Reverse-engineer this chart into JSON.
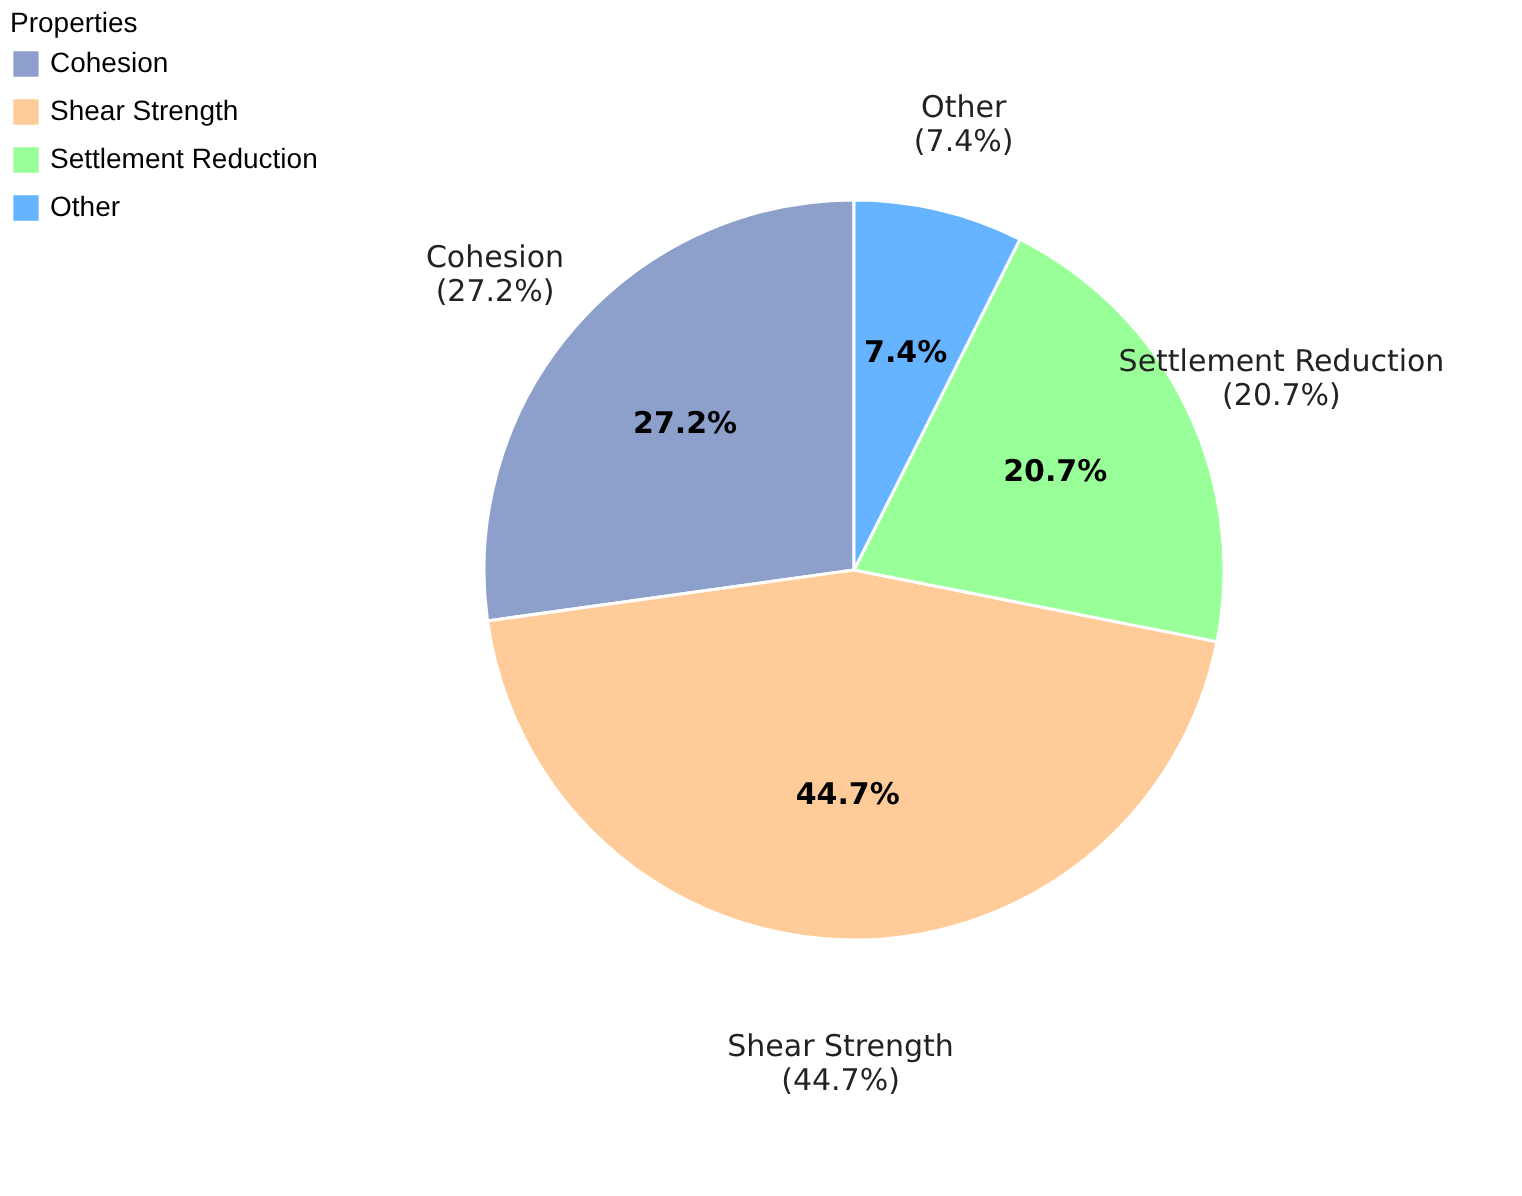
{
  "chart_data": {
    "type": "pie",
    "legend_title": "Properties",
    "legend": "top left",
    "categories": [
      "Cohesion",
      "Shear Strength",
      "Settlement Reduction",
      "Other"
    ],
    "values": [
      27.2,
      44.7,
      20.7,
      7.4
    ],
    "colors": [
      "#8da0cb",
      "#ffcc99",
      "#99ff99",
      "#66b3ff"
    ],
    "value_labels": [
      "27.2%",
      "44.7%",
      "20.7%",
      "7.4%"
    ],
    "annotations": [
      "(27.2%)",
      "(44.7%)",
      "(20.7%)",
      "(7.4%)"
    ]
  }
}
